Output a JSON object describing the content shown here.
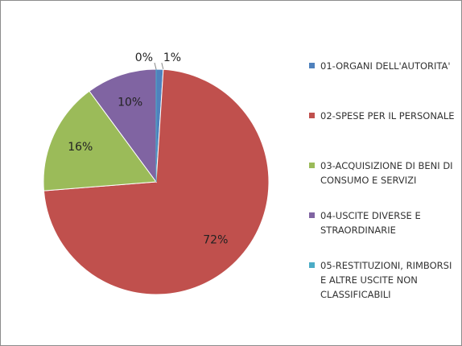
{
  "chart_data": {
    "type": "pie",
    "categories": [
      "01-ORGANI DELL'AUTORITA'",
      "02-SPESE PER IL PERSONALE",
      "03-ACQUISIZIONE DI BENI DI CONSUMO E SERVIZI",
      "04-USCITE DIVERSE E STRAORDINARIE",
      "05-RESTITUZIONI, RIMBORSI E ALTRE USCITE NON CLASSIFICABILI"
    ],
    "values": [
      1,
      72,
      16,
      10,
      0
    ],
    "value_labels": [
      "1%",
      "72%",
      "16%",
      "10%",
      "0%"
    ],
    "colors": [
      "#4f81bd",
      "#c0504d",
      "#9bbb59",
      "#8064a2",
      "#4bacc6"
    ],
    "legend": "right"
  }
}
